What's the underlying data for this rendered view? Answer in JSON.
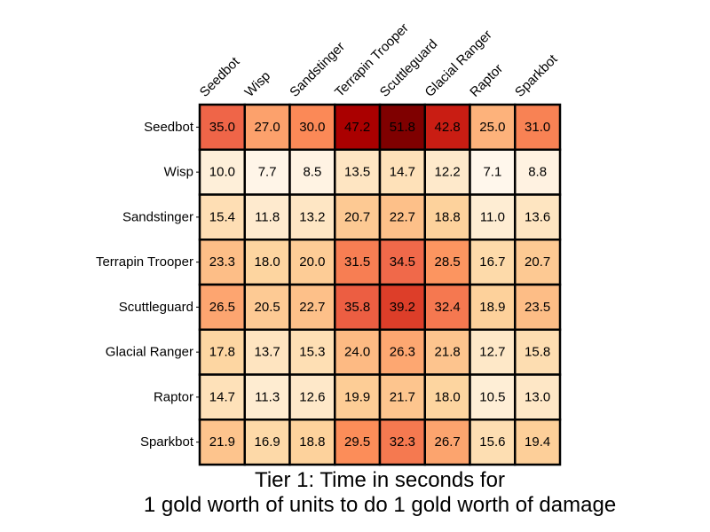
{
  "chart_data": {
    "type": "heatmap",
    "title": [
      "Tier 1: Time in seconds for",
      "1 gold worth of units to do 1 gold worth of damage"
    ],
    "colormap": "OrRd",
    "value_range": [
      7.1,
      51.8
    ],
    "x_labels": [
      "Seedbot",
      "Wisp",
      "Sandstinger",
      "Terrapin Trooper",
      "Scuttleguard",
      "Glacial Ranger",
      "Raptor",
      "Sparkbot"
    ],
    "y_labels": [
      "Seedbot",
      "Wisp",
      "Sandstinger",
      "Terrapin Trooper",
      "Scuttleguard",
      "Glacial Ranger",
      "Raptor",
      "Sparkbot"
    ],
    "values": [
      [
        35.0,
        27.0,
        30.0,
        47.2,
        51.8,
        42.8,
        25.0,
        31.0
      ],
      [
        10.0,
        7.7,
        8.5,
        13.5,
        14.7,
        12.2,
        7.1,
        8.8
      ],
      [
        15.4,
        11.8,
        13.2,
        20.7,
        22.7,
        18.8,
        11.0,
        13.6
      ],
      [
        23.3,
        18.0,
        20.0,
        31.5,
        34.5,
        28.5,
        16.7,
        20.7
      ],
      [
        26.5,
        20.5,
        22.7,
        35.8,
        39.2,
        32.4,
        18.9,
        23.5
      ],
      [
        17.8,
        13.7,
        15.3,
        24.0,
        26.3,
        21.8,
        12.7,
        15.8
      ],
      [
        14.7,
        11.3,
        12.6,
        19.9,
        21.7,
        18.0,
        10.5,
        13.0
      ],
      [
        21.9,
        16.9,
        18.8,
        29.5,
        32.3,
        26.7,
        15.6,
        19.4
      ]
    ],
    "colors": [
      "#fff7ec",
      "#fee8c8",
      "#fdd49e",
      "#fdbb84",
      "#fc8d59",
      "#ef6548",
      "#d7301f",
      "#b30000",
      "#7f0000"
    ]
  }
}
